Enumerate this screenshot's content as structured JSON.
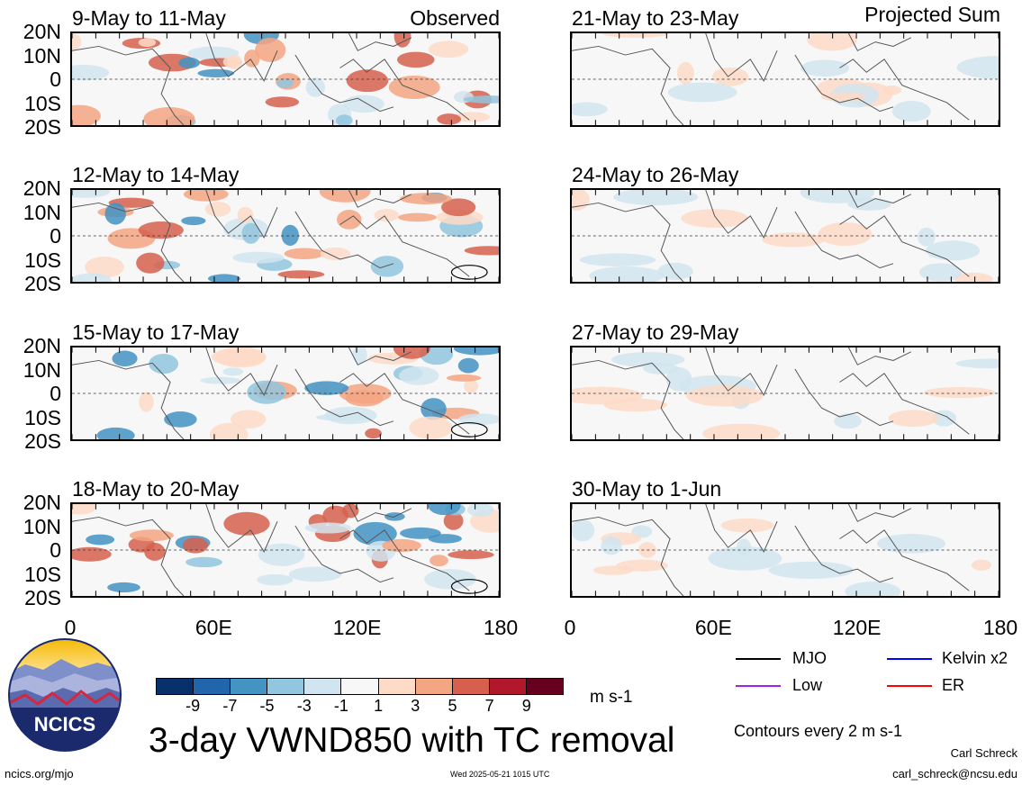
{
  "left_column_label": "Observed",
  "right_column_label": "Projected Sum",
  "panels_left": [
    {
      "title": "9-May to 11-May"
    },
    {
      "title": "12-May to 14-May"
    },
    {
      "title": "15-May to 17-May"
    },
    {
      "title": "18-May to 20-May"
    }
  ],
  "panels_right": [
    {
      "title": "21-May to 23-May"
    },
    {
      "title": "24-May to 26-May"
    },
    {
      "title": "27-May to 29-May"
    },
    {
      "title": "30-May to 1-Jun"
    }
  ],
  "lat_ticks": [
    "20N",
    "10N",
    "0",
    "10S",
    "20S"
  ],
  "lon_ticks": [
    "0",
    "60E",
    "120E",
    "180"
  ],
  "colorbar": {
    "colors": [
      "#08306b",
      "#2166ac",
      "#4393c3",
      "#92c5de",
      "#d1e5f0",
      "#f7f7f7",
      "#fddbc7",
      "#f4a582",
      "#d6604d",
      "#b2182b",
      "#67001f"
    ],
    "ticks": [
      "-9",
      "-7",
      "-5",
      "-3",
      "-1",
      "1",
      "3",
      "5",
      "7",
      "9"
    ],
    "units": "m s-1"
  },
  "legend": [
    {
      "label": "MJO",
      "color": "#000000"
    },
    {
      "label": "Kelvin x2",
      "color": "#0000ff"
    },
    {
      "label": "Low",
      "color": "#a020f0"
    },
    {
      "label": "ER",
      "color": "#ff0000"
    }
  ],
  "contour_note": "Contours every 2 m s-1",
  "main_title": "3-day VWND850 with TC removal",
  "logo_text": "NCICS",
  "website": "ncics.org/mjo",
  "timestamp": "Wed 2025-05-21 1015 UTC",
  "author": "Carl Schreck",
  "email": "carl_schreck@ncsu.edu"
}
